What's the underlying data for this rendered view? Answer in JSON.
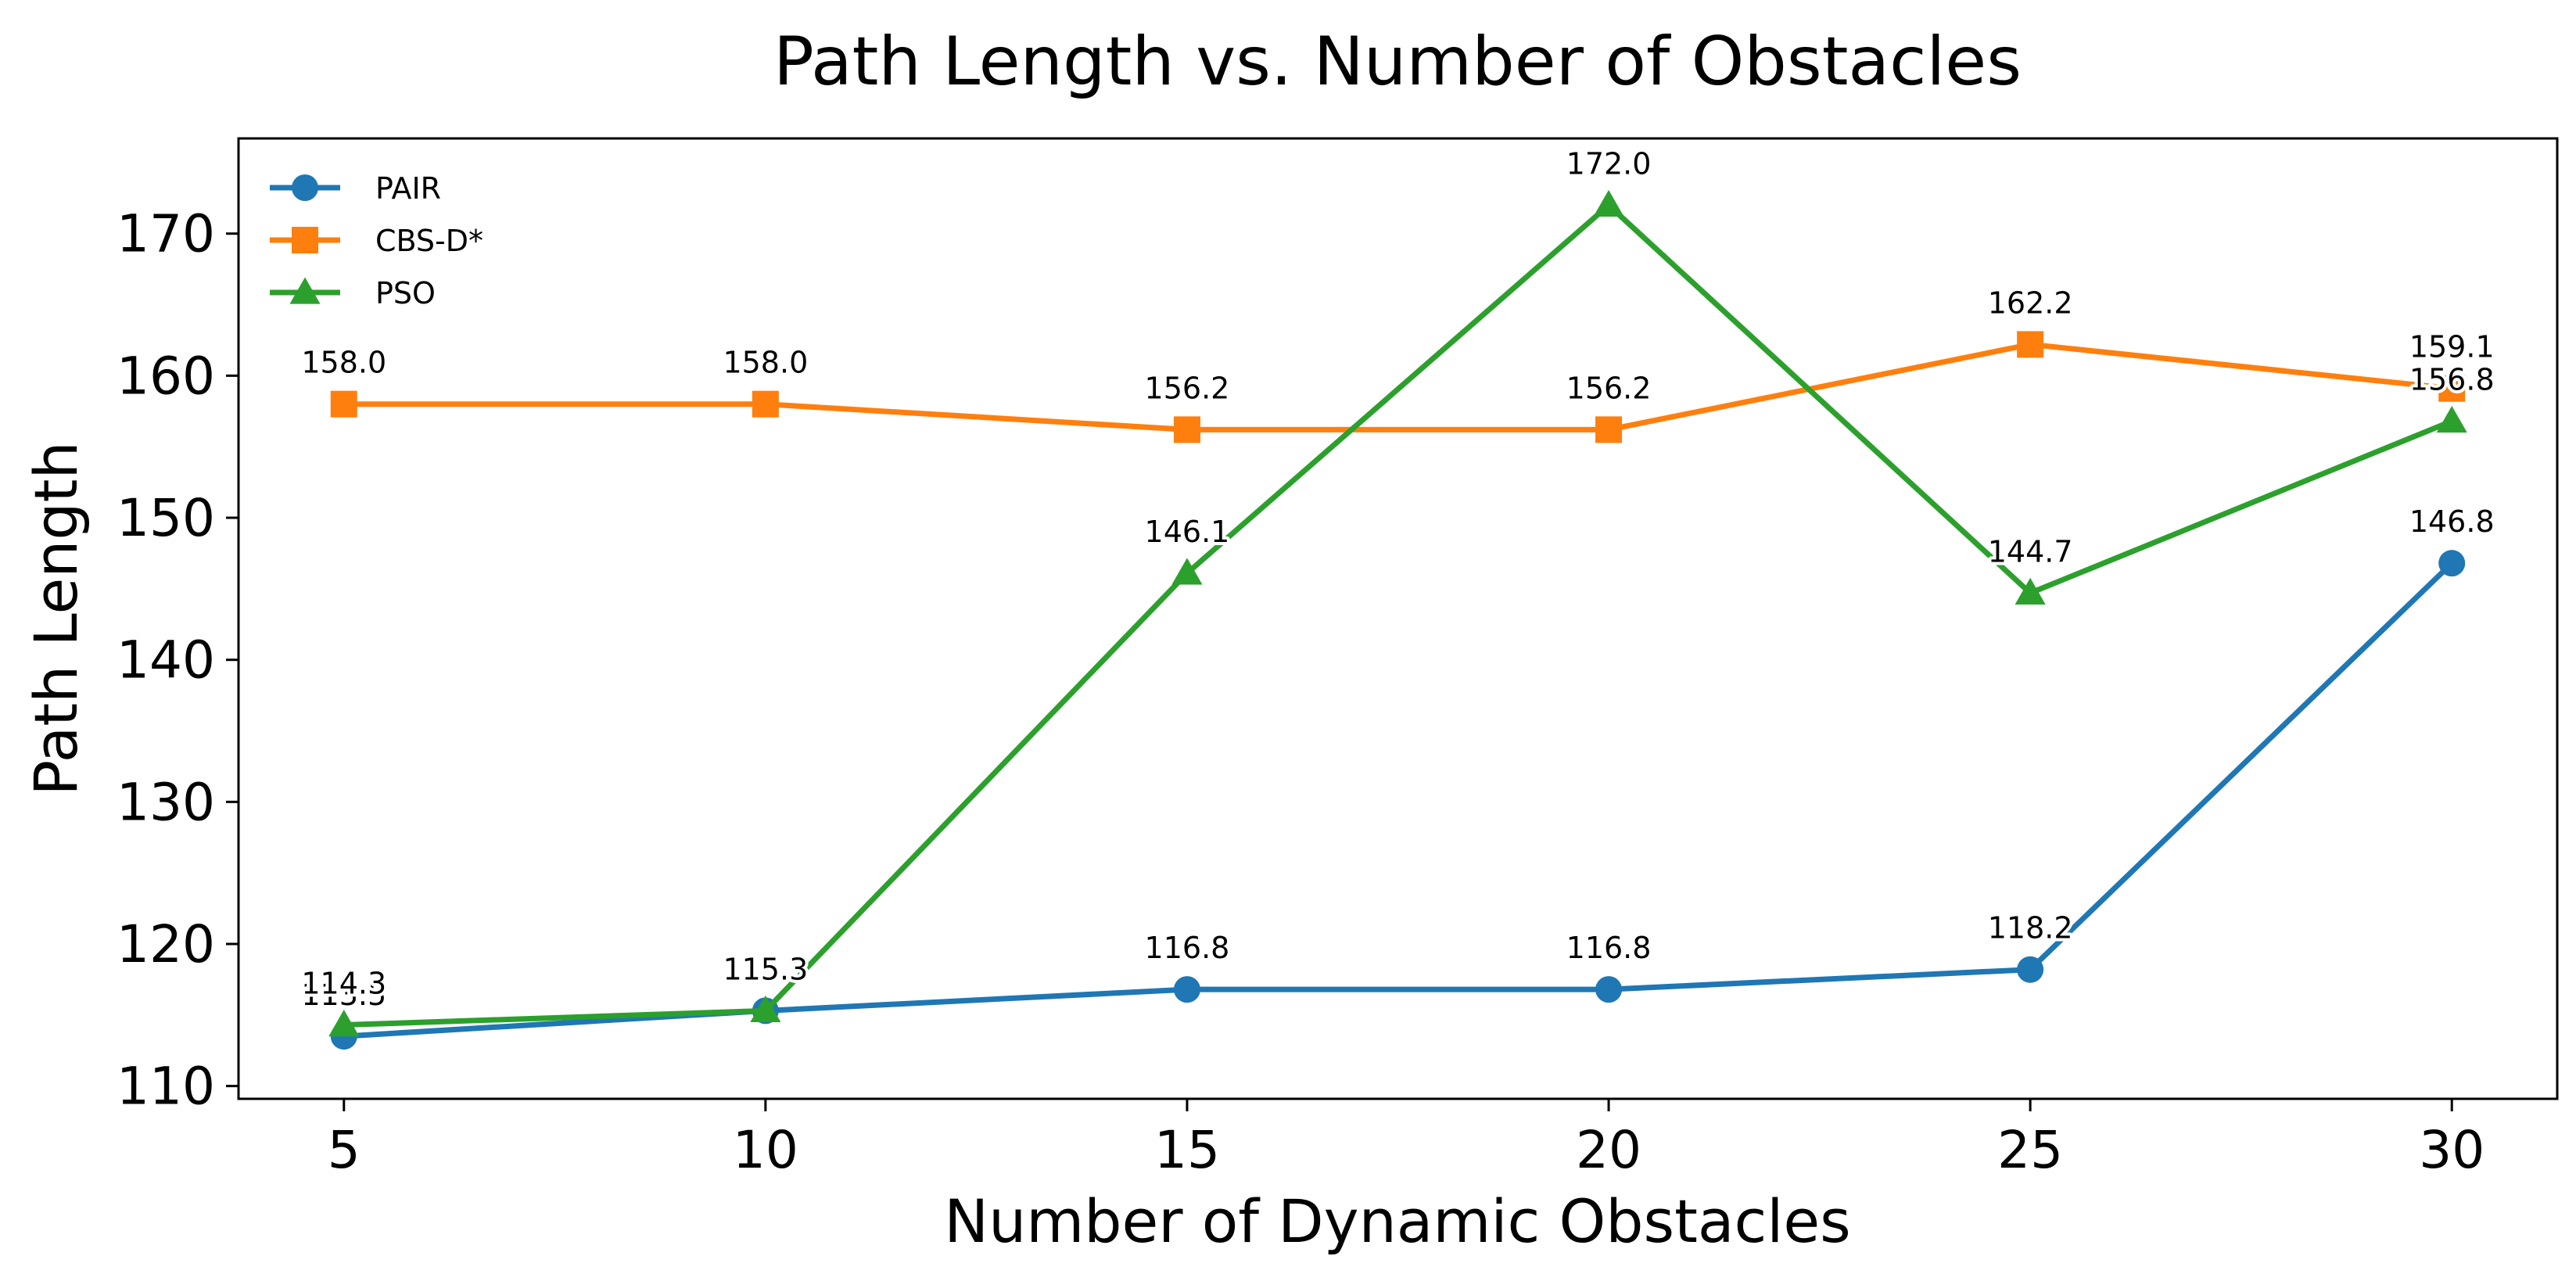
{
  "chart_data": {
    "type": "line",
    "title": "Path Length vs. Number of Obstacles",
    "xlabel": "Number of Dynamic Obstacles",
    "ylabel": "Path Length",
    "x": [
      5,
      10,
      15,
      20,
      25,
      30
    ],
    "x_ticks": [
      "5",
      "10",
      "15",
      "20",
      "25",
      "30"
    ],
    "y_ticks": [
      "110",
      "120",
      "130",
      "140",
      "150",
      "160",
      "170"
    ],
    "xlim": [
      3.75,
      31.25
    ],
    "ylim": [
      109.1,
      176.7
    ],
    "grid": false,
    "legend_position": "top-left",
    "series": [
      {
        "name": "PAIR",
        "marker": "circle",
        "color": "#1f77b4",
        "values": [
          113.5,
          115.3,
          116.8,
          116.8,
          118.2,
          146.8
        ],
        "labels": [
          "113.5",
          "115.3",
          "116.8",
          "116.8",
          "118.2",
          "146.8"
        ]
      },
      {
        "name": "CBS-D*",
        "marker": "square",
        "color": "#ff7f0e",
        "values": [
          158.0,
          158.0,
          156.2,
          156.2,
          162.2,
          159.1
        ],
        "labels": [
          "158.0",
          "158.0",
          "156.2",
          "156.2",
          "162.2",
          "159.1"
        ]
      },
      {
        "name": "PSO",
        "marker": "triangle",
        "color": "#2ca02c",
        "values": [
          114.3,
          115.3,
          146.1,
          172.0,
          144.7,
          156.8
        ],
        "labels": [
          "114.3",
          "115.3",
          "146.1",
          "172.0",
          "144.7",
          "156.8"
        ]
      }
    ]
  }
}
